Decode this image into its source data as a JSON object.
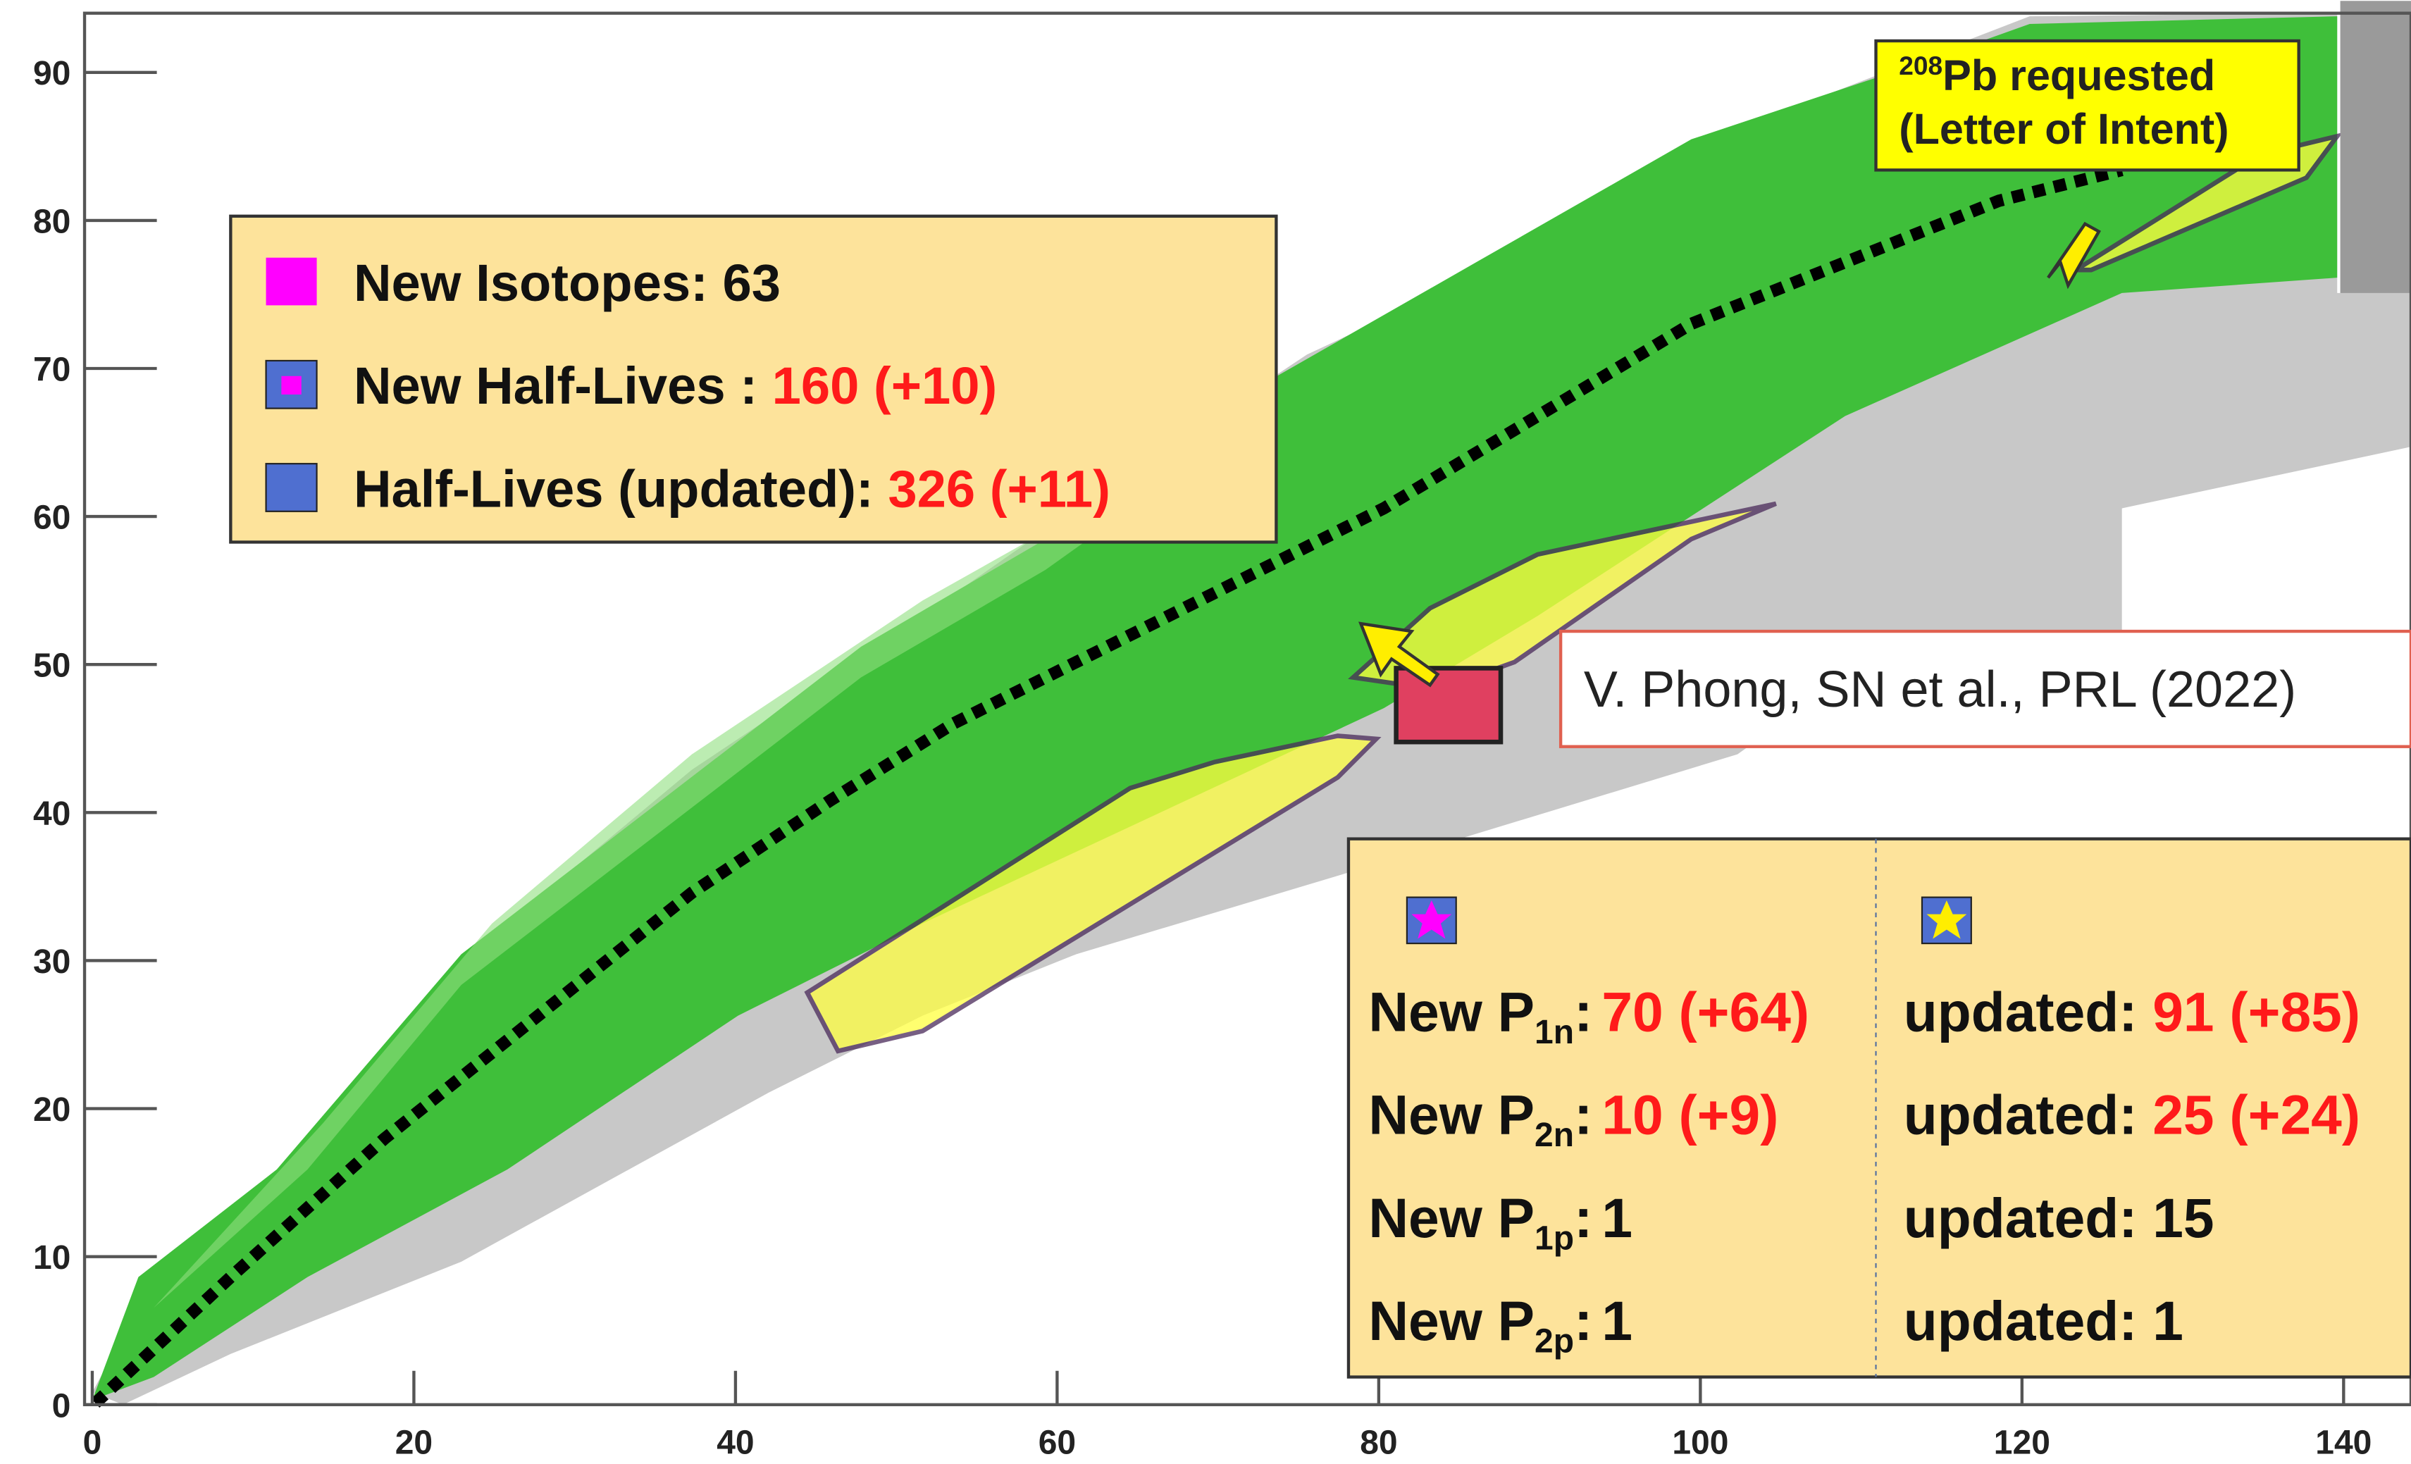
{
  "chart_data": {
    "type": "nuclide_chart",
    "xlim": [
      0,
      144
    ],
    "ylim": [
      0,
      94
    ],
    "xticks": [
      0,
      20,
      40,
      60,
      80,
      100,
      120,
      140
    ],
    "yticks": [
      0,
      10,
      20,
      30,
      40,
      50,
      60,
      70,
      80,
      90
    ],
    "legend": [
      {
        "text": "New Isotopes: 63",
        "color": "#ff00ff"
      },
      {
        "text": "New Half-Lives : ",
        "count": "160 (+10)",
        "color": "#4f6fd0"
      },
      {
        "text": "Half-Lives (updated): ",
        "count": "326 (+11)",
        "color": "#4f6fd0"
      }
    ],
    "annotations": {
      "reference": "V. Phong, SN et al., PRL (2022)",
      "request_mass": "208",
      "request": "Pb requested",
      "request_note": "(Letter of Intent)"
    },
    "pn_table": {
      "rows": [
        {
          "label": "New P",
          "sub": "1n",
          "sep": ":",
          "value": "70 (+64)",
          "updated_label": "updated: ",
          "updated_value": "91 (+85)",
          "highlight": true
        },
        {
          "label": "New P",
          "sub": "2n",
          "sep": ":",
          "value": "10 (+9)",
          "updated_label": "updated: ",
          "updated_value": "25 (+24)",
          "highlight": true
        },
        {
          "label": "New P",
          "sub": "1p",
          "sep": ":",
          "value": "1",
          "updated_label": "updated: ",
          "updated_value": "15",
          "highlight": false
        },
        {
          "label": "New P",
          "sub": "2p",
          "sep": ":",
          "value": "1",
          "updated_label": "updated: ",
          "updated_value": "1",
          "highlight": false
        }
      ]
    }
  }
}
